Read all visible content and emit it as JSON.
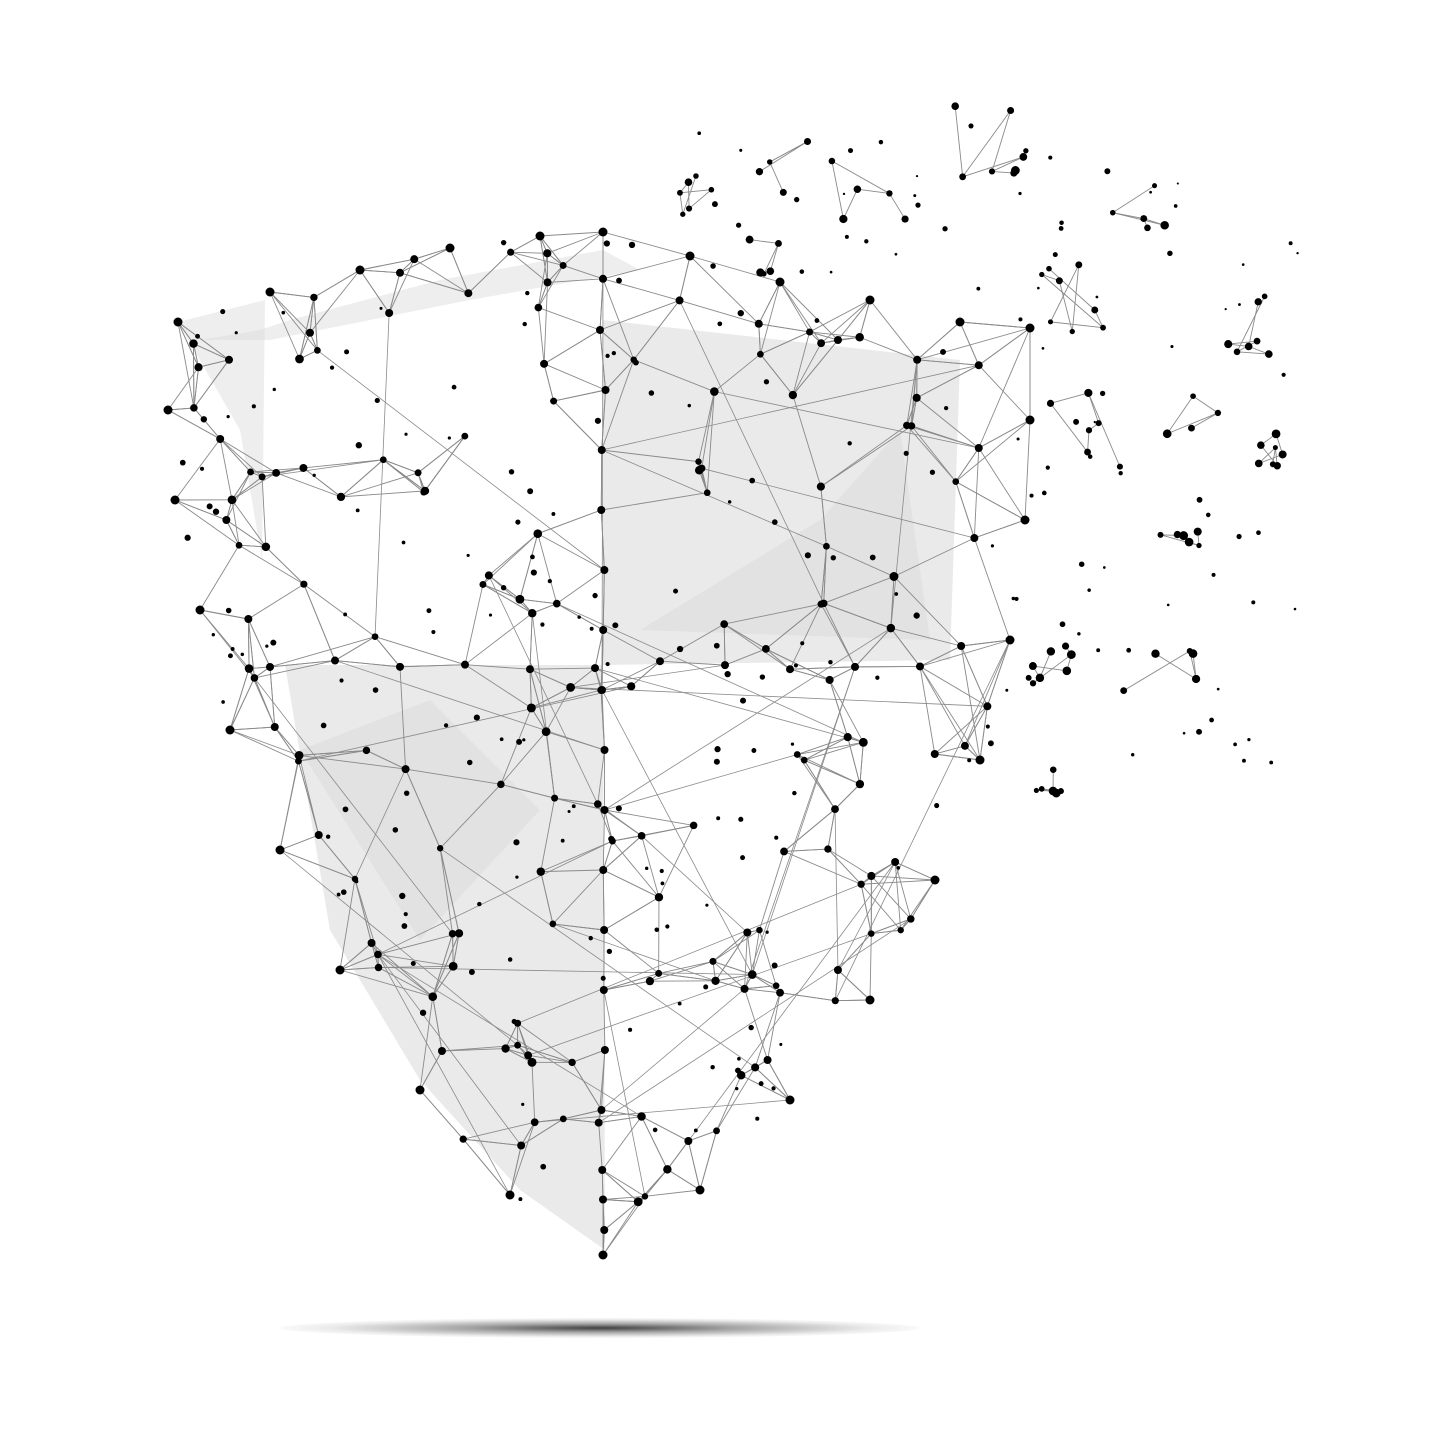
{
  "illustration": {
    "subject": "shield-icon",
    "style": "low-poly wireframe",
    "colors": {
      "background": "#ffffff",
      "node": "#000000",
      "line": "#8a8a8a",
      "facet": "#d9d9d9"
    }
  }
}
